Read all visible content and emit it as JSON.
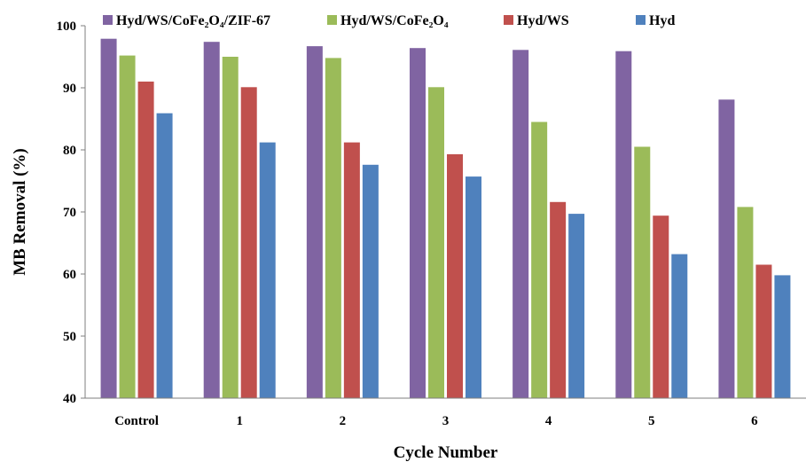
{
  "chart_data": {
    "type": "bar",
    "xlabel": "Cycle Number",
    "ylabel": "MB Removal (%)",
    "ylim": [
      40,
      100
    ],
    "yticks": [
      40,
      50,
      60,
      70,
      80,
      90,
      100
    ],
    "grid": false,
    "legend_position": "top",
    "categories": [
      "Control",
      "1",
      "2",
      "3",
      "4",
      "5",
      "6"
    ],
    "series": [
      {
        "name": "Hyd/WS/CoFe₂O₄/ZIF-67",
        "color": "#8064a2",
        "values": [
          97.9,
          97.4,
          96.7,
          96.4,
          96.1,
          95.9,
          88.1
        ]
      },
      {
        "name": "Hyd/WS/CoFe₂O₄",
        "color": "#9bbb59",
        "values": [
          95.2,
          95.0,
          94.8,
          90.1,
          84.5,
          80.5,
          70.8
        ]
      },
      {
        "name": "Hyd/WS",
        "color": "#c0504d",
        "values": [
          91.0,
          90.1,
          81.2,
          79.3,
          71.6,
          69.4,
          61.5
        ]
      },
      {
        "name": "Hyd",
        "color": "#4f81bd",
        "values": [
          85.9,
          81.2,
          77.6,
          75.7,
          69.7,
          63.2,
          59.8
        ]
      }
    ]
  }
}
